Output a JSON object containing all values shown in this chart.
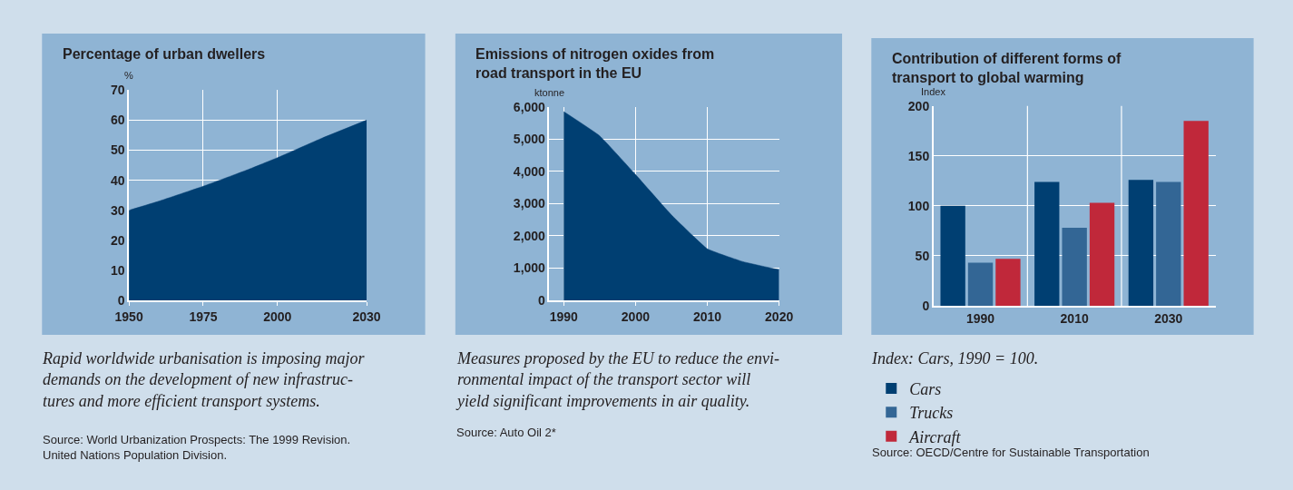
{
  "chart_data": [
    {
      "type": "area",
      "title": "Percentage of urban dwellers",
      "ylabel": "%",
      "x": [
        1950,
        1960,
        1975,
        1990,
        2000,
        2015,
        2030
      ],
      "values": [
        30,
        33,
        38,
        43.5,
        47.5,
        54,
        60
      ],
      "color": "#003f72",
      "xlim": [
        1950,
        2030
      ],
      "xticks": [
        1950,
        1975,
        2000,
        2030
      ],
      "ylim": [
        0,
        70
      ],
      "yticks": [
        0,
        10,
        20,
        30,
        40,
        50,
        60,
        70
      ],
      "grid": true,
      "annotations": [
        "Rapid worldwide urbanisation is imposing major\ndemands on the development of new infrastruc-\ntures and more efficient transport systems.",
        "Source: World Urbanization Prospects: The 1999 Revision.\nUnited Nations Population Division."
      ]
    },
    {
      "type": "area",
      "title": "Emissions of nitrogen oxides from\nroad transport in the EU",
      "ylabel": "ktonne",
      "x": [
        1990,
        1995,
        2000,
        2005,
        2010,
        2015,
        2020
      ],
      "values": [
        5850,
        5100,
        3900,
        2650,
        1600,
        1200,
        950
      ],
      "color": "#003f72",
      "xlim": [
        1988,
        2020
      ],
      "xticks": [
        1990,
        2000,
        2010,
        2020
      ],
      "ylim": [
        0,
        6000
      ],
      "yticks": [
        {
          "value": 0,
          "label": "0"
        },
        {
          "value": 1000,
          "label": "1,000"
        },
        {
          "value": 2000,
          "label": "2,000"
        },
        {
          "value": 3000,
          "label": "3,000"
        },
        {
          "value": 4000,
          "label": "4,000"
        },
        {
          "value": 5000,
          "label": "5,000"
        },
        {
          "value": 6000,
          "label": "6,000"
        }
      ],
      "grid": true,
      "annotations": [
        "Measures proposed by the EU to reduce the envi-\nronmental impact of the transport sector will\nyield significant improvements in air quality.",
        "Source: Auto Oil 2*"
      ]
    },
    {
      "type": "bar",
      "title": "Contribution of different forms of\ntransport to global warming",
      "ylabel": "Index",
      "categories": [
        "1990",
        "2010",
        "2030"
      ],
      "series": [
        {
          "name": "Cars",
          "color": "#003f72",
          "values": [
            100,
            124,
            126
          ]
        },
        {
          "name": "Trucks",
          "color": "#336695",
          "values": [
            43,
            78,
            124
          ]
        },
        {
          "name": "Aircraft",
          "color": "#c0283a",
          "values": [
            47,
            103,
            185
          ]
        }
      ],
      "ylim": [
        0,
        200
      ],
      "yticks": [
        0,
        50,
        100,
        150,
        200
      ],
      "grid": true,
      "legend": "bottom left",
      "annotations": [
        "Index: Cars, 1990 = 100.",
        "Source: OECD/Centre for Sustainable Transportation"
      ]
    }
  ]
}
